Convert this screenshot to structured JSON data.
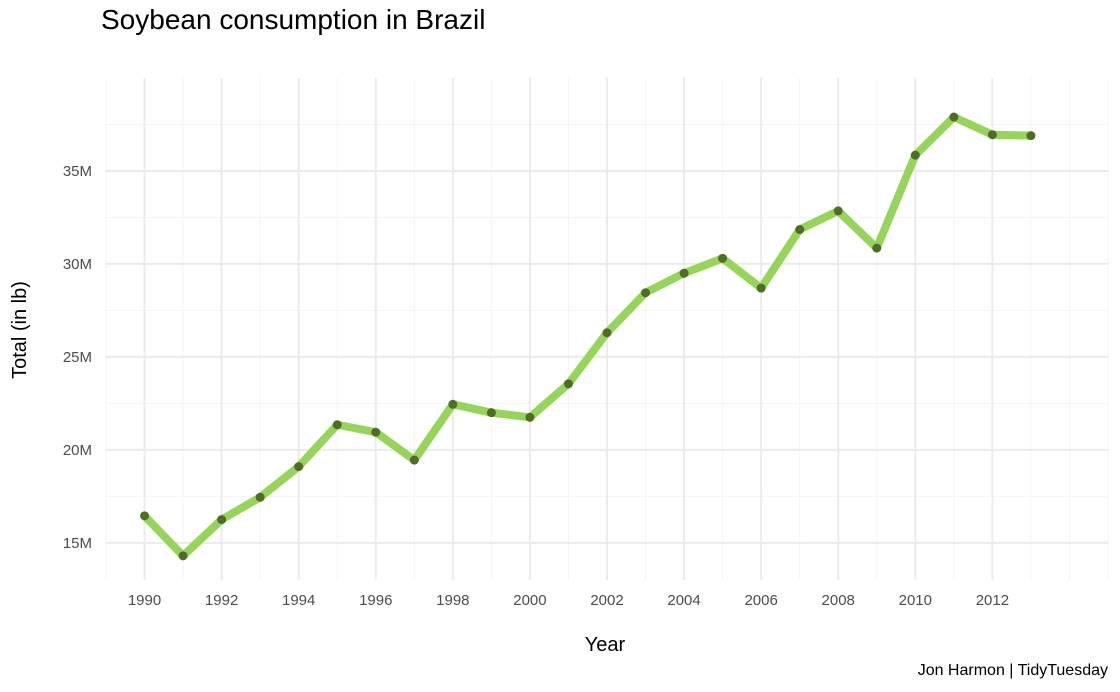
{
  "chart_data": {
    "type": "line",
    "title": "Soybean consumption in Brazil",
    "xlabel": "Year",
    "ylabel": "Total (in lb)",
    "caption": "Jon Harmon | TidyTuesday",
    "x": [
      1990,
      1991,
      1992,
      1993,
      1994,
      1995,
      1996,
      1997,
      1998,
      1999,
      2000,
      2001,
      2002,
      2003,
      2004,
      2005,
      2006,
      2007,
      2008,
      2009,
      2010,
      2011,
      2012,
      2013
    ],
    "series": [
      {
        "values": [
          16.45,
          14.3,
          16.25,
          17.45,
          19.1,
          21.35,
          20.95,
          19.45,
          22.45,
          22.0,
          21.75,
          23.55,
          26.3,
          28.45,
          29.5,
          30.3,
          28.7,
          31.85,
          32.85,
          30.85,
          35.85,
          37.9,
          36.95,
          36.9
        ]
      }
    ],
    "y_unit": "M",
    "xlim": [
      1989,
      2015
    ],
    "ylim": [
      13.0,
      40.0
    ],
    "x_ticks": [
      1990,
      1992,
      1994,
      1996,
      1998,
      2000,
      2002,
      2004,
      2006,
      2008,
      2010,
      2012
    ],
    "x_tick_labels": [
      "1990",
      "1992",
      "1994",
      "1996",
      "1998",
      "2000",
      "2002",
      "2004",
      "2006",
      "2008",
      "2010",
      "2012"
    ],
    "y_ticks": [
      15,
      20,
      25,
      30,
      35
    ],
    "y_tick_labels": [
      "15M",
      "20M",
      "25M",
      "30M",
      "35M"
    ],
    "grid": true,
    "legend": "none",
    "colors": {
      "line": "#95d55a",
      "point": "#4f6d24",
      "grid_major": "#ebebeb",
      "grid_minor": "#f4f4f4"
    }
  }
}
